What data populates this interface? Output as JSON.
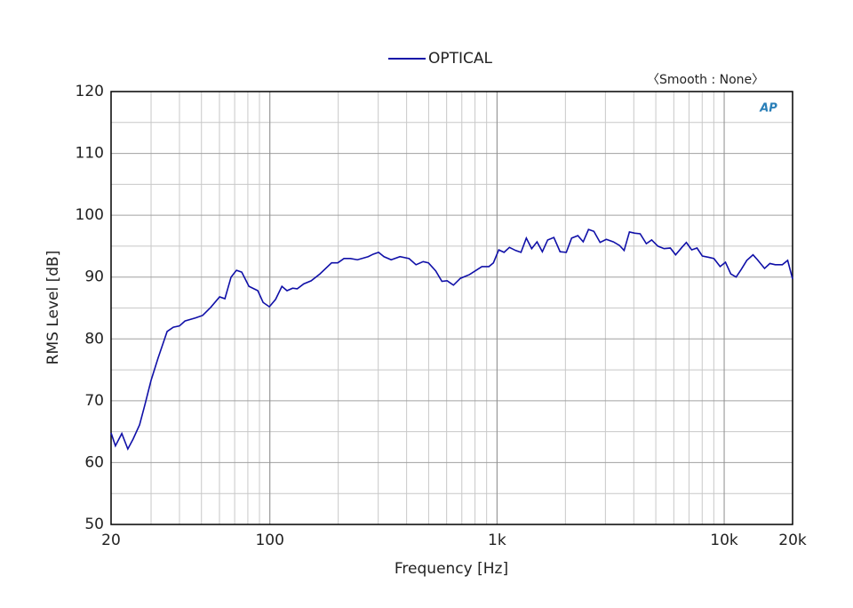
{
  "chart_data": {
    "type": "line",
    "x_scale": "log",
    "grid": true,
    "legend_position": "top",
    "annotation": "〈Smooth : None〉",
    "logo_text": "AP",
    "x_label": "Frequency [Hz]",
    "y_label": "RMS Level [dB]",
    "xlim": [
      20,
      20000
    ],
    "ylim": [
      50,
      120
    ],
    "xticks": [
      20,
      100,
      {
        "value": 1000,
        "label": "1k"
      },
      {
        "value": 10000,
        "label": "10k"
      },
      {
        "value": 20000,
        "label": "20k"
      }
    ],
    "yticks": [
      50,
      60,
      70,
      80,
      90,
      100,
      110,
      120
    ],
    "x": [
      20,
      20.9,
      22.3,
      23.7,
      25,
      26.7,
      28.2,
      30,
      32.2,
      35.3,
      37.6,
      40,
      42.3,
      47.1,
      50.6,
      54.9,
      60.1,
      63.4,
      67.5,
      71.3,
      75.2,
      80.9,
      88.5,
      93.4,
      99.5,
      106,
      113,
      119,
      126,
      132,
      141,
      152,
      166,
      187,
      199,
      212,
      226,
      243,
      271,
      285,
      301,
      318,
      342,
      374,
      410,
      440,
      473,
      499,
      537,
      572,
      603,
      643,
      690,
      756,
      858,
      921,
      964,
      1018,
      1074,
      1134,
      1208,
      1275,
      1346,
      1421,
      1500,
      1583,
      1671,
      1779,
      1895,
      2018,
      2130,
      2269,
      2395,
      2528,
      2669,
      2842,
      3027,
      3253,
      3465,
      3626,
      3827,
      4040,
      4265,
      4542,
      4794,
      5106,
      5438,
      5792,
      6113,
      6511,
      6813,
      7193,
      7592,
      8014,
      8536,
      9011,
      9597,
      10131,
      10694,
      11289,
      11914,
      12577,
      13395,
      14013,
      15057,
      15894,
      16779,
      18028,
      19030,
      20000
    ],
    "series": [
      {
        "name": "OPTICAL",
        "color": "#1010a8",
        "values": [
          64.8,
          62.7,
          64.7,
          62.2,
          63.8,
          66.1,
          69.4,
          73.3,
          76.9,
          81.2,
          81.9,
          82.1,
          82.9,
          83.4,
          83.8,
          85.1,
          86.8,
          86.5,
          90.0,
          91.1,
          90.8,
          88.5,
          87.8,
          85.9,
          85.2,
          86.4,
          88.5,
          87.8,
          88.2,
          88.1,
          88.9,
          89.4,
          90.5,
          92.3,
          92.3,
          93.0,
          93.0,
          92.8,
          93.3,
          93.7,
          94.0,
          93.3,
          92.8,
          93.3,
          93.0,
          92.0,
          92.5,
          92.3,
          91.0,
          89.3,
          89.4,
          88.7,
          89.8,
          90.4,
          91.7,
          91.7,
          92.3,
          94.4,
          94.0,
          94.8,
          94.3,
          94.0,
          96.3,
          94.6,
          95.7,
          94.1,
          96.0,
          96.4,
          94.1,
          94.0,
          96.3,
          96.7,
          95.7,
          97.7,
          97.4,
          95.6,
          96.1,
          95.7,
          95.1,
          94.3,
          97.3,
          97.1,
          97.0,
          95.4,
          96.0,
          95.0,
          94.6,
          94.7,
          93.6,
          94.8,
          95.6,
          94.4,
          94.7,
          93.4,
          93.2,
          93.0,
          91.7,
          92.4,
          90.5,
          90.0,
          91.3,
          92.7,
          93.6,
          92.8,
          91.4,
          92.2,
          92.0,
          92.0,
          92.7,
          89.7
        ]
      }
    ]
  }
}
